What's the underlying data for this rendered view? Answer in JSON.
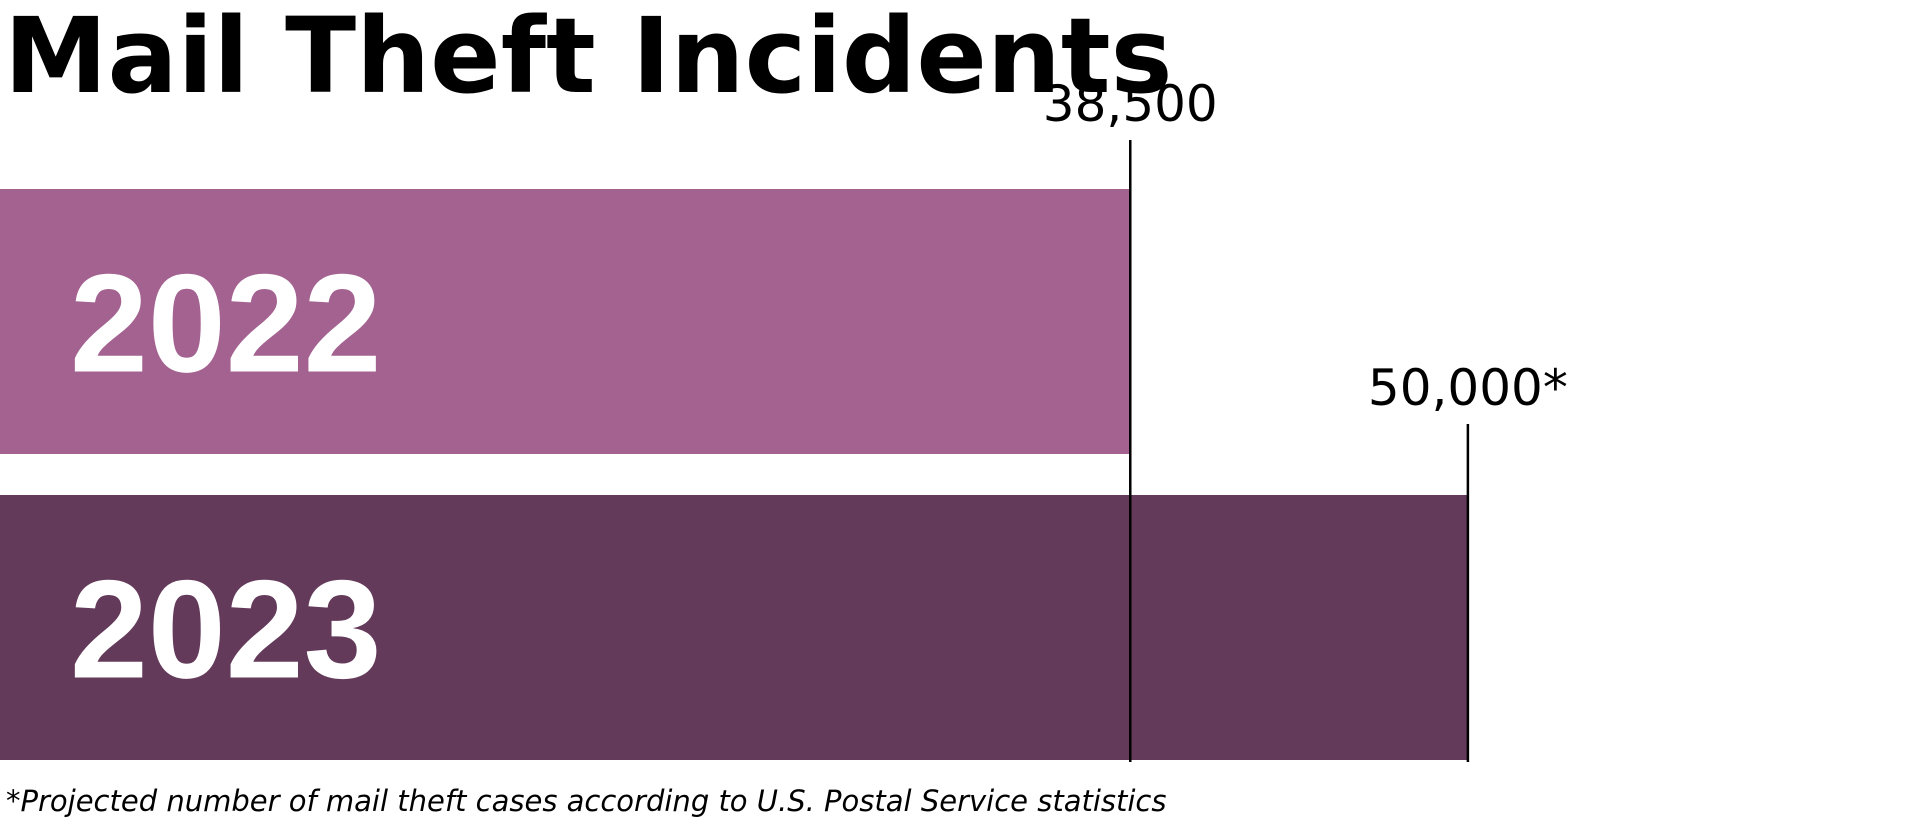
{
  "chart_data": {
    "type": "bar",
    "orientation": "horizontal",
    "title": "Mail Theft Incidents",
    "categories": [
      "2022",
      "2023"
    ],
    "values": [
      38500,
      50000
    ],
    "value_labels": [
      "38,500",
      "50,000*"
    ],
    "colors": [
      "#a36290",
      "#643a5a"
    ],
    "xlim": [
      0,
      65400
    ],
    "xlabel": "",
    "ylabel": "",
    "grid": false,
    "legend": "none",
    "footnote": "*Projected number of mail theft cases according to U.S. Postal Service statistics"
  }
}
